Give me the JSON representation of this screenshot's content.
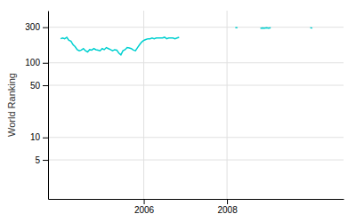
{
  "chart_data": {
    "type": "line",
    "ylabel": "World Ranking",
    "log": "y",
    "grid": true,
    "xlim": [
      2003.7,
      2010.8
    ],
    "xticks": [
      2006,
      2008
    ],
    "ylim": [
      1.5,
      500
    ],
    "yticks": [
      5,
      10,
      50,
      100,
      300
    ],
    "series": [
      {
        "color": "#00d0d0",
        "x": [
          2004.0,
          2004.05,
          2004.1,
          2004.15,
          2004.2,
          2004.25,
          2004.3,
          2004.35,
          2004.4,
          2004.45,
          2004.5,
          2004.55,
          2004.6,
          2004.65,
          2004.7,
          2004.75,
          2004.8,
          2004.85,
          2004.9,
          2004.95,
          2005.0,
          2005.05,
          2005.1,
          2005.15,
          2005.2,
          2005.25,
          2005.3,
          2005.35,
          2005.4,
          2005.45,
          2005.5,
          2005.55,
          2005.6,
          2005.65,
          2005.7,
          2005.75,
          2005.8,
          2005.85,
          2005.9,
          2005.95,
          2006.0,
          2006.05,
          2006.1,
          2006.15,
          2006.2,
          2006.25,
          2006.3,
          2006.35,
          2006.4,
          2006.45,
          2006.5,
          2006.55,
          2006.6,
          2006.65,
          2006.7,
          2006.75,
          2006.8,
          2006.85
        ],
        "values": [
          210,
          215,
          210,
          220,
          200,
          195,
          175,
          165,
          150,
          145,
          148,
          155,
          145,
          140,
          150,
          148,
          155,
          150,
          148,
          145,
          155,
          150,
          160,
          155,
          150,
          145,
          150,
          148,
          135,
          128,
          145,
          150,
          160,
          158,
          155,
          148,
          145,
          160,
          175,
          190,
          200,
          205,
          210,
          210,
          215,
          210,
          215,
          215,
          215,
          215,
          220,
          210,
          215,
          215,
          215,
          210,
          215,
          220
        ]
      },
      {
        "color": "#00d0d0",
        "x": [
          2008.2,
          2008.25
        ],
        "values": [
          298,
          295
        ]
      },
      {
        "color": "#00d0d0",
        "x": [
          2008.8,
          2008.85,
          2008.9,
          2008.95,
          2009.0,
          2009.05
        ],
        "values": [
          290,
          293,
          292,
          295,
          292,
          295
        ]
      },
      {
        "color": "#00d0d0",
        "x": [
          2010.0,
          2010.05
        ],
        "values": [
          295,
          292
        ]
      }
    ]
  }
}
